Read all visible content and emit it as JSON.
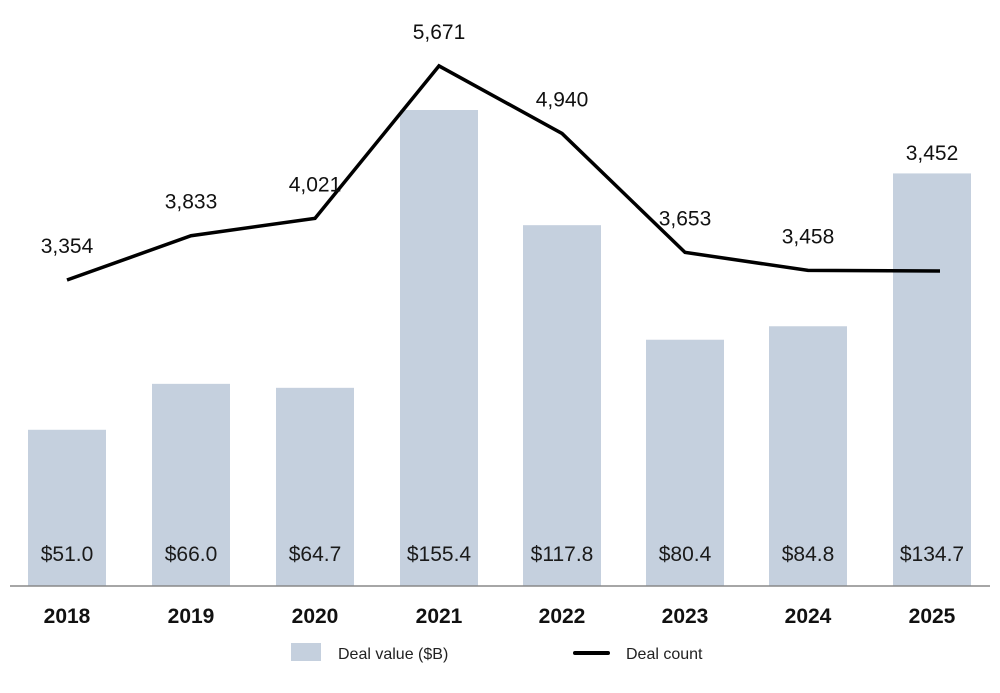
{
  "chart_data": {
    "type": "bar+line",
    "categories": [
      "2018",
      "2019",
      "2020",
      "2021",
      "2022",
      "2023",
      "2024",
      "2025"
    ],
    "series": [
      {
        "name": "Deal value ($B)",
        "type": "bar",
        "values": [
          51.0,
          66.0,
          64.7,
          155.4,
          117.8,
          80.4,
          84.8,
          134.7
        ],
        "labels": [
          "$51.0",
          "$66.0",
          "$64.7",
          "$155.4",
          "$117.8",
          "$80.4",
          "$84.8",
          "$134.7"
        ],
        "color": "#c5d0de"
      },
      {
        "name": "Deal count",
        "type": "line",
        "values": [
          3354,
          3833,
          4021,
          5671,
          4940,
          3653,
          3458,
          3452
        ],
        "labels": [
          "3,354",
          "3,833",
          "4,021",
          "5,671",
          "4,940",
          "3,653",
          "3,458",
          "3,452"
        ],
        "color": "#000000"
      }
    ],
    "grid": false,
    "legend": "bottom-center"
  }
}
